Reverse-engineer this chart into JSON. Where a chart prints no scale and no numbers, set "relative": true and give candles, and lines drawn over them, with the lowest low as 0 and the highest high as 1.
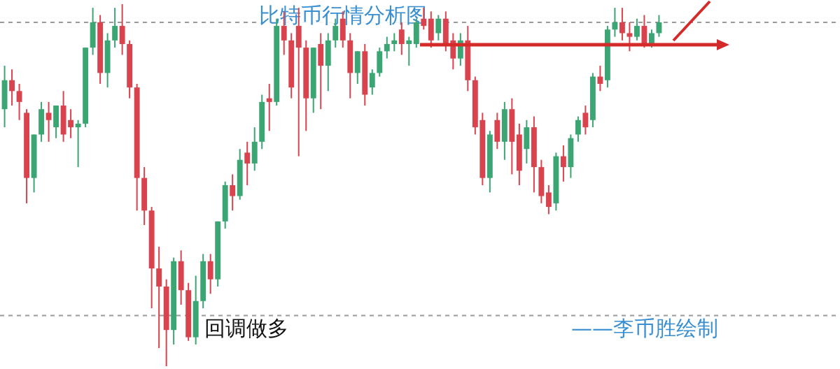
{
  "chart_data": {
    "type": "candlestick",
    "title": "比特币行情分析图",
    "relative": true,
    "categories": [
      null,
      null,
      null,
      null,
      null,
      null,
      null,
      null,
      null,
      null,
      null,
      null,
      null,
      null,
      null,
      null,
      null,
      null,
      null,
      null,
      null,
      null,
      null,
      null,
      null,
      null,
      null,
      null,
      null,
      null,
      null,
      null,
      null,
      null,
      null,
      null,
      null,
      null,
      null,
      null,
      null,
      null,
      null,
      null,
      null,
      null,
      null,
      null,
      null,
      null,
      null,
      null,
      null,
      null,
      null,
      null,
      null,
      null,
      null,
      null,
      null,
      null,
      null,
      null,
      null,
      null,
      null,
      null,
      null,
      null,
      null,
      null,
      null,
      null,
      null,
      null,
      null,
      null,
      null,
      null,
      null,
      null,
      null,
      null,
      null,
      null,
      null,
      null,
      null,
      null
    ],
    "ohlc": [
      [
        0.71,
        0.83,
        0.66,
        0.79
      ],
      [
        0.79,
        0.82,
        0.72,
        0.76
      ],
      [
        0.76,
        0.78,
        0.68,
        0.73
      ],
      [
        0.7,
        0.71,
        0.45,
        0.52
      ],
      [
        0.52,
        0.64,
        0.48,
        0.64
      ],
      [
        0.64,
        0.73,
        0.62,
        0.71
      ],
      [
        0.7,
        0.73,
        0.62,
        0.68
      ],
      [
        0.66,
        0.72,
        0.63,
        0.72
      ],
      [
        0.72,
        0.76,
        0.62,
        0.64
      ],
      [
        0.68,
        0.71,
        0.63,
        0.66
      ],
      [
        0.66,
        0.68,
        0.55,
        0.67
      ],
      [
        0.67,
        0.88,
        0.66,
        0.88
      ],
      [
        0.88,
        0.99,
        0.86,
        0.95
      ],
      [
        0.95,
        0.97,
        0.78,
        0.81
      ],
      [
        0.81,
        0.92,
        0.77,
        0.9
      ],
      [
        0.9,
        0.99,
        0.88,
        0.94
      ],
      [
        0.94,
        1.0,
        0.86,
        0.89
      ],
      [
        0.89,
        0.9,
        0.74,
        0.77
      ],
      [
        0.77,
        0.78,
        0.43,
        0.52
      ],
      [
        0.52,
        0.55,
        0.39,
        0.43
      ],
      [
        0.43,
        0.44,
        0.16,
        0.27
      ],
      [
        0.27,
        0.33,
        0.05,
        0.22
      ],
      [
        0.22,
        0.24,
        0.0,
        0.1
      ],
      [
        0.1,
        0.3,
        0.06,
        0.29
      ],
      [
        0.29,
        0.32,
        0.17,
        0.21
      ],
      [
        0.21,
        0.23,
        0.07,
        0.08
      ],
      [
        0.08,
        0.25,
        0.06,
        0.18
      ],
      [
        0.18,
        0.31,
        0.16,
        0.29
      ],
      [
        0.29,
        0.31,
        0.2,
        0.24
      ],
      [
        0.24,
        0.4,
        0.22,
        0.4
      ],
      [
        0.4,
        0.51,
        0.38,
        0.5
      ],
      [
        0.5,
        0.53,
        0.43,
        0.47
      ],
      [
        0.47,
        0.6,
        0.46,
        0.57
      ],
      [
        0.59,
        0.62,
        0.5,
        0.56
      ],
      [
        0.56,
        0.66,
        0.54,
        0.62
      ],
      [
        0.62,
        0.75,
        0.6,
        0.73
      ],
      [
        0.74,
        0.78,
        0.65,
        0.73
      ],
      [
        0.73,
        0.96,
        0.72,
        0.94
      ],
      [
        0.94,
        0.98,
        0.86,
        0.9
      ],
      [
        0.9,
        0.92,
        0.74,
        0.77
      ],
      [
        0.94,
        0.99,
        0.58,
        0.88
      ],
      [
        0.88,
        0.9,
        0.65,
        0.74
      ],
      [
        0.74,
        0.88,
        0.7,
        0.88
      ],
      [
        0.89,
        0.92,
        0.71,
        0.83
      ],
      [
        0.83,
        0.92,
        0.76,
        0.9
      ],
      [
        0.9,
        0.96,
        0.88,
        0.94
      ],
      [
        0.96,
        0.98,
        0.88,
        0.9
      ],
      [
        0.9,
        0.92,
        0.74,
        0.81
      ],
      [
        0.81,
        0.87,
        0.78,
        0.87
      ],
      [
        0.87,
        0.89,
        0.72,
        0.75
      ],
      [
        0.77,
        0.82,
        0.75,
        0.81
      ],
      [
        0.81,
        0.88,
        0.8,
        0.87
      ],
      [
        0.87,
        0.91,
        0.85,
        0.89
      ],
      [
        0.89,
        0.92,
        0.87,
        0.9
      ],
      [
        0.93,
        0.95,
        0.86,
        0.89
      ],
      [
        0.89,
        0.91,
        0.83,
        0.9
      ],
      [
        0.89,
        0.96,
        0.88,
        0.95
      ],
      [
        0.96,
        0.99,
        0.93,
        0.94
      ],
      [
        0.96,
        0.98,
        0.88,
        0.9
      ],
      [
        0.92,
        0.97,
        0.9,
        0.96
      ],
      [
        0.96,
        0.98,
        0.87,
        0.89
      ],
      [
        0.9,
        0.92,
        0.82,
        0.85
      ],
      [
        0.85,
        0.92,
        0.83,
        0.9
      ],
      [
        0.9,
        0.94,
        0.76,
        0.79
      ],
      [
        0.79,
        0.8,
        0.64,
        0.66
      ],
      [
        0.68,
        0.7,
        0.5,
        0.52
      ],
      [
        0.52,
        0.65,
        0.48,
        0.64
      ],
      [
        0.68,
        0.7,
        0.6,
        0.62
      ],
      [
        0.62,
        0.73,
        0.57,
        0.71
      ],
      [
        0.71,
        0.74,
        0.53,
        0.62
      ],
      [
        0.64,
        0.67,
        0.5,
        0.54
      ],
      [
        0.6,
        0.68,
        0.56,
        0.66
      ],
      [
        0.66,
        0.69,
        0.48,
        0.55
      ],
      [
        0.55,
        0.57,
        0.45,
        0.47
      ],
      [
        0.48,
        0.5,
        0.42,
        0.44
      ],
      [
        0.45,
        0.59,
        0.43,
        0.58
      ],
      [
        0.58,
        0.61,
        0.51,
        0.55
      ],
      [
        0.55,
        0.64,
        0.52,
        0.63
      ],
      [
        0.64,
        0.69,
        0.62,
        0.68
      ],
      [
        0.7,
        0.72,
        0.64,
        0.66
      ],
      [
        0.68,
        0.81,
        0.66,
        0.8
      ],
      [
        0.8,
        0.83,
        0.76,
        0.78
      ],
      [
        0.79,
        0.94,
        0.77,
        0.93
      ],
      [
        0.93,
        0.99,
        0.91,
        0.95
      ],
      [
        0.95,
        0.99,
        0.9,
        0.92
      ],
      [
        0.92,
        0.95,
        0.87,
        0.91
      ],
      [
        0.91,
        0.96,
        0.9,
        0.94
      ],
      [
        0.94,
        0.97,
        0.88,
        0.89
      ],
      [
        0.89,
        0.93,
        0.88,
        0.92
      ],
      [
        0.92,
        0.97,
        0.91,
        0.95
      ]
    ],
    "colors": [
      "#3ba573",
      "#d9434e",
      "#d9434e",
      "#d9434e",
      "#3ba573",
      "#3ba573",
      "#d9434e",
      "#3ba573",
      "#d9434e",
      "#d9434e",
      "#3ba573",
      "#3ba573",
      "#3ba573",
      "#d9434e",
      "#3ba573",
      "#3ba573",
      "#d9434e",
      "#d9434e",
      "#d9434e",
      "#d9434e",
      "#d9434e",
      "#d9434e",
      "#d9434e",
      "#3ba573",
      "#d9434e",
      "#d9434e",
      "#3ba573",
      "#3ba573",
      "#d9434e",
      "#3ba573",
      "#3ba573",
      "#d9434e",
      "#3ba573",
      "#d9434e",
      "#3ba573",
      "#3ba573",
      "#d9434e",
      "#3ba573",
      "#d9434e",
      "#d9434e",
      "#d9434e",
      "#d9434e",
      "#3ba573",
      "#d9434e",
      "#3ba573",
      "#3ba573",
      "#d9434e",
      "#d9434e",
      "#3ba573",
      "#d9434e",
      "#3ba573",
      "#3ba573",
      "#3ba573",
      "#3ba573",
      "#d9434e",
      "#3ba573",
      "#3ba573",
      "#d9434e",
      "#d9434e",
      "#3ba573",
      "#d9434e",
      "#d9434e",
      "#3ba573",
      "#d9434e",
      "#d9434e",
      "#d9434e",
      "#3ba573",
      "#d9434e",
      "#3ba573",
      "#d9434e",
      "#d9434e",
      "#3ba573",
      "#d9434e",
      "#d9434e",
      "#d9434e",
      "#3ba573",
      "#d9434e",
      "#3ba573",
      "#3ba573",
      "#d9434e",
      "#3ba573",
      "#d9434e",
      "#3ba573",
      "#3ba573",
      "#d9434e",
      "#d9434e",
      "#3ba573",
      "#d9434e",
      "#3ba573",
      "#3ba573"
    ],
    "ref_lines": [
      {
        "axis": "y",
        "value": 0.95,
        "color": "#9a9a9a",
        "line_style": "dashed"
      },
      {
        "axis": "y",
        "value": 0.14,
        "color": "#9a9a9a",
        "line_style": "dashed"
      }
    ],
    "annotations": [
      "回调做多",
      "——李币胜绘制"
    ]
  }
}
